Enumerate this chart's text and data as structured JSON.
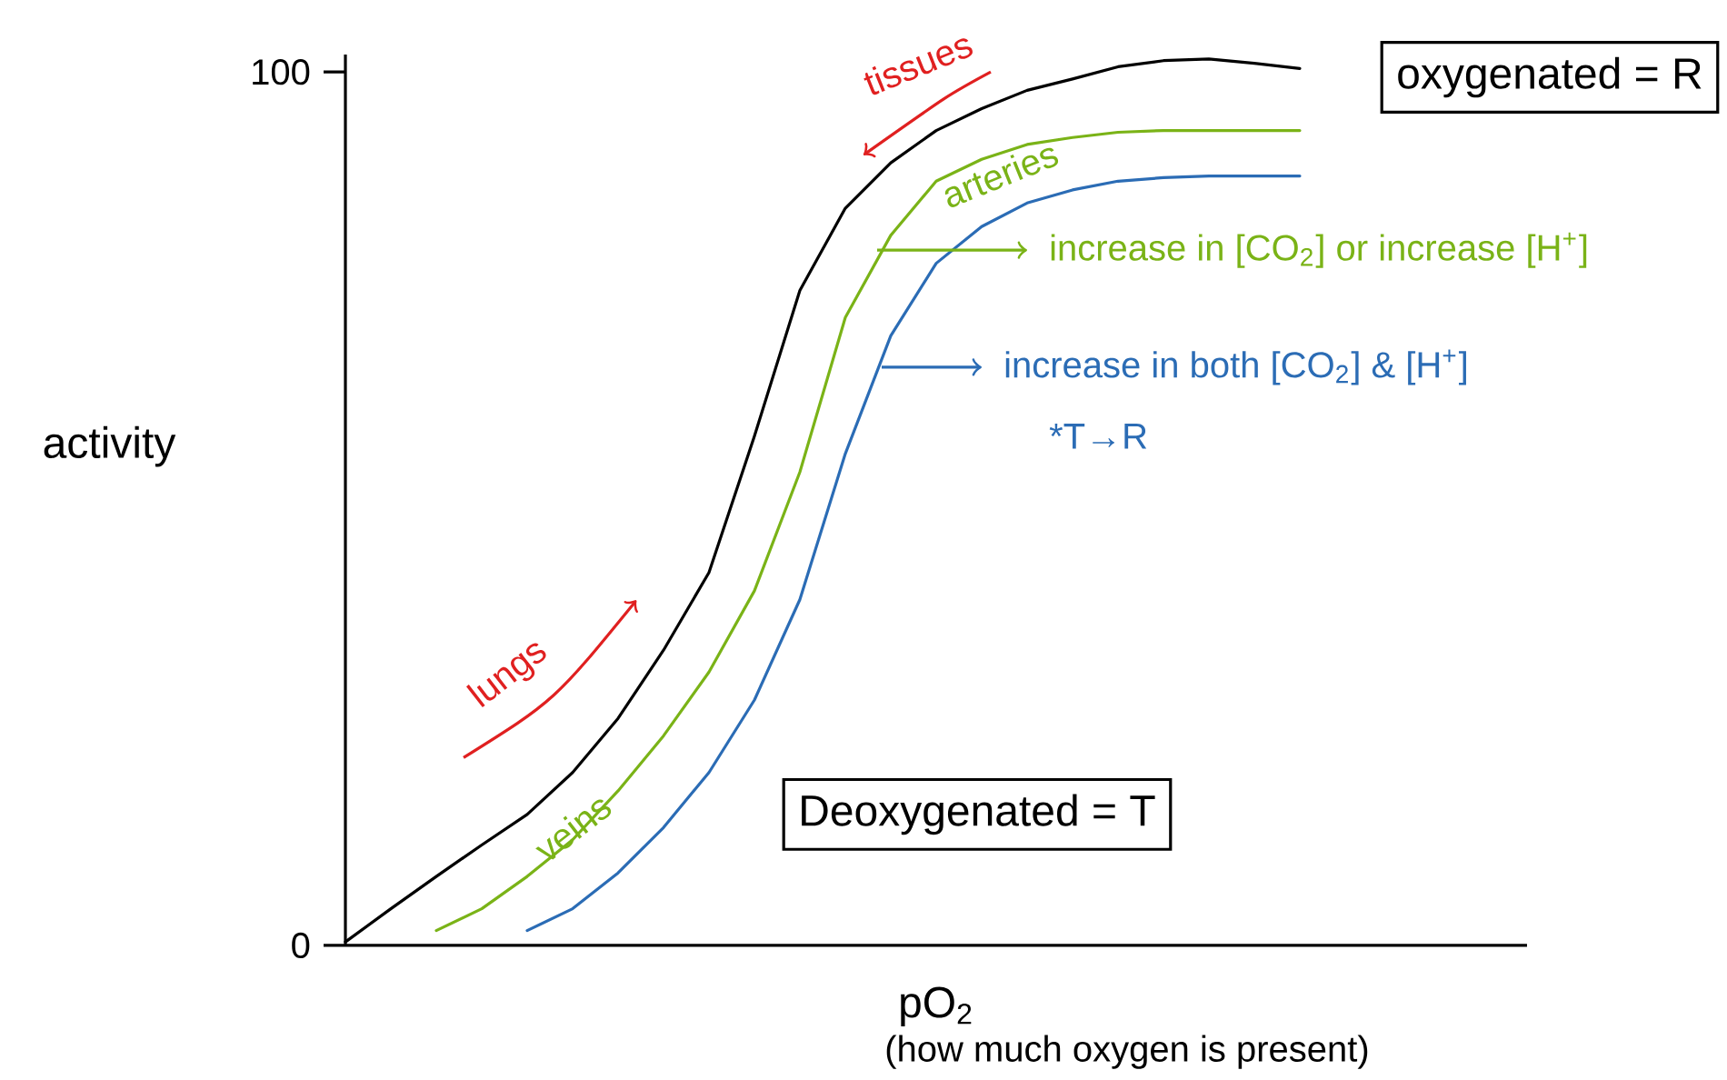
{
  "chart_data": {
    "type": "line",
    "xlabel": "pO$_{2}$",
    "ylabel": "activity",
    "categories": [
      null,
      null,
      null,
      null,
      null,
      null,
      null,
      null,
      null,
      null,
      null,
      null,
      null,
      null,
      null,
      null,
      null,
      null,
      null,
      null,
      null,
      null
    ],
    "series": [
      {
        "color": "#000000",
        "values": [
          0.4,
          4.2,
          7.9,
          11.5,
          15,
          19.8,
          26,
          33.8,
          42.7,
          58.3,
          75,
          84.4,
          89.6,
          93.3,
          95.8,
          97.9,
          99.2,
          100.6,
          101.3,
          101.5,
          101,
          100.4
        ]
      },
      {
        "color": "#7ab317",
        "values": [
          null,
          null,
          1.7,
          4.2,
          7.9,
          12.1,
          17.7,
          24,
          31.3,
          40.6,
          54.2,
          71.9,
          81.3,
          87.5,
          90,
          91.7,
          92.5,
          93.1,
          93.3,
          93.3,
          93.3,
          93.3
        ]
      },
      {
        "color": "#2b6cb5",
        "values": [
          null,
          null,
          null,
          null,
          1.7,
          4.2,
          8.3,
          13.5,
          19.8,
          28.1,
          39.6,
          56.3,
          69.8,
          78.1,
          82.3,
          85,
          86.5,
          87.5,
          87.9,
          88.1,
          88.1,
          88.1
        ]
      }
    ],
    "ylim": [
      0,
      102
    ],
    "yticks": [
      0,
      100
    ],
    "annotations": [
      "tissues",
      "arteries",
      "lungs",
      "veins",
      "increase in [CO$_{2}$] or increase [H$^{+}$]",
      "increase in both [CO$_{2}$] & [H$^{+}$]",
      "*T→R",
      "oxygenated = R",
      "Deoxygenated = T",
      "(how much oxygen is present)"
    ]
  }
}
